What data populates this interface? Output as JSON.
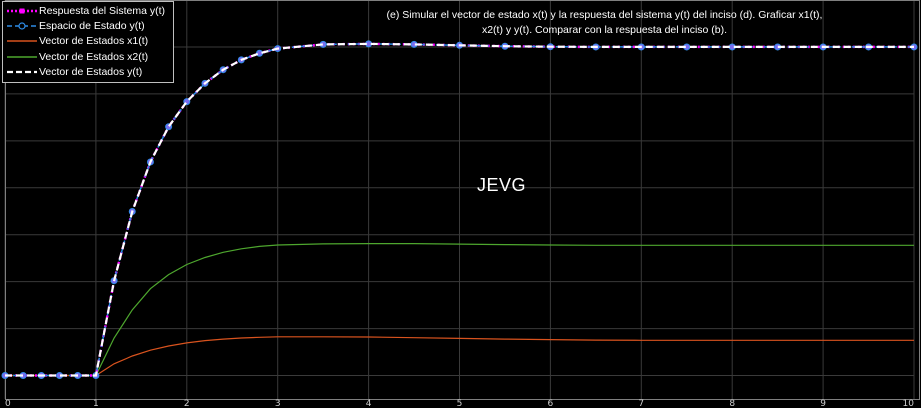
{
  "chart_data": {
    "type": "line",
    "title": "",
    "xlabel": "",
    "ylabel": "",
    "xlim": [
      0,
      10
    ],
    "ylim": [
      -0.1,
      1.6
    ],
    "x_ticks": [
      "0",
      "1",
      "2",
      "3",
      "4",
      "5",
      "6",
      "7",
      "8",
      "9",
      "10"
    ],
    "y_tick_values": [
      0,
      0.2,
      0.4,
      0.6,
      0.8,
      1.0,
      1.2,
      1.4
    ],
    "grid": true,
    "legend_position": "top-left",
    "background": "#000000",
    "annotation": {
      "line1": "(e) Simular el vector de estado x(t) y la respuesta del sistema y(t) del inciso (d). Graficar x1(t),",
      "line2": "x2(t) y y(t). Comparar con la respuesta del inciso (b)."
    },
    "watermark": "JEVG",
    "x": [
      0,
      0.2,
      0.4,
      0.6,
      0.8,
      1.0,
      1.2,
      1.4,
      1.6,
      1.8,
      2.0,
      2.2,
      2.4,
      2.6,
      2.8,
      3.0,
      3.5,
      4.0,
      4.5,
      5.0,
      5.5,
      6.0,
      6.5,
      7.0,
      7.5,
      8.0,
      8.5,
      9.0,
      9.5,
      10.0
    ],
    "series": [
      {
        "name": "Respuesta del Sistema y(t)",
        "color": "#ff00ff",
        "style": "dotted-square-markers",
        "values": [
          0,
          0,
          0,
          0,
          0,
          0,
          0.404,
          0.699,
          0.91,
          1.06,
          1.167,
          1.245,
          1.303,
          1.345,
          1.373,
          1.393,
          1.411,
          1.413,
          1.411,
          1.407,
          1.403,
          1.401,
          1.4,
          1.4,
          1.4,
          1.4,
          1.4,
          1.4,
          1.4,
          1.4
        ]
      },
      {
        "name": "Espacio de Estado y(t)",
        "color": "#2e8ce6",
        "style": "dashed-circle-markers",
        "values": [
          0,
          0,
          0,
          0,
          0,
          0,
          0.404,
          0.699,
          0.91,
          1.06,
          1.167,
          1.245,
          1.303,
          1.345,
          1.373,
          1.393,
          1.411,
          1.413,
          1.411,
          1.407,
          1.403,
          1.401,
          1.4,
          1.4,
          1.4,
          1.4,
          1.4,
          1.4,
          1.4,
          1.4
        ]
      },
      {
        "name": "Vector de Estados x1(t)",
        "color": "#d9531e",
        "style": "solid",
        "values": [
          0,
          0,
          0,
          0,
          0,
          0,
          0.05,
          0.083,
          0.108,
          0.126,
          0.139,
          0.149,
          0.155,
          0.16,
          0.163,
          0.165,
          0.165,
          0.164,
          0.161,
          0.158,
          0.155,
          0.153,
          0.151,
          0.15,
          0.15,
          0.15,
          0.15,
          0.15,
          0.15,
          0.15
        ]
      },
      {
        "name": "Vector de Estados x2(t)",
        "color": "#4ea72e",
        "style": "solid",
        "values": [
          0,
          0,
          0,
          0,
          0,
          0,
          0.16,
          0.28,
          0.37,
          0.43,
          0.473,
          0.503,
          0.525,
          0.54,
          0.55,
          0.556,
          0.561,
          0.562,
          0.562,
          0.56,
          0.558,
          0.556,
          0.555,
          0.555,
          0.555,
          0.555,
          0.555,
          0.555,
          0.555,
          0.555
        ]
      },
      {
        "name": "Vector de Estados y(t)",
        "color": "#ffffff",
        "style": "dashed-thick",
        "values": [
          0,
          0,
          0,
          0,
          0,
          0,
          0.404,
          0.699,
          0.91,
          1.06,
          1.167,
          1.245,
          1.303,
          1.345,
          1.373,
          1.393,
          1.411,
          1.413,
          1.411,
          1.407,
          1.403,
          1.401,
          1.4,
          1.4,
          1.4,
          1.4,
          1.4,
          1.4,
          1.4,
          1.4
        ]
      }
    ]
  }
}
